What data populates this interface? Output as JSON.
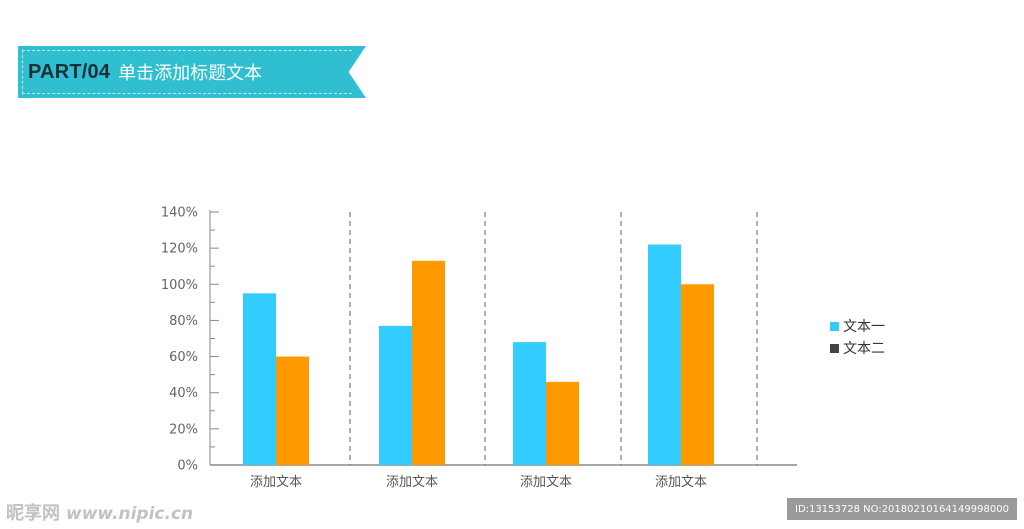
{
  "header": {
    "part": "PART/04",
    "title": "单击添加标题文本"
  },
  "colors": {
    "ribbon": "#2fbfd0",
    "series1": "#33ccff",
    "series2": "#ff9900",
    "legend_swatch2": "#444444"
  },
  "chart_data": {
    "type": "bar",
    "categories": [
      "添加文本",
      "添加文本",
      "添加文本",
      "添加文本"
    ],
    "series": [
      {
        "name": "文本一",
        "values": [
          95,
          77,
          68,
          122
        ]
      },
      {
        "name": "文本二",
        "values": [
          60,
          113,
          46,
          100
        ]
      }
    ],
    "ylim": [
      0,
      140
    ],
    "yticks": [
      0,
      20,
      40,
      60,
      80,
      100,
      120,
      140
    ],
    "ytick_labels": [
      "0%",
      "20%",
      "40%",
      "60%",
      "80%",
      "100%",
      "120%",
      "140%"
    ],
    "legend_position": "right",
    "title": "",
    "xlabel": "",
    "ylabel": ""
  },
  "legend": {
    "items": [
      {
        "label": "文本一"
      },
      {
        "label": "文本二"
      }
    ]
  },
  "watermark": {
    "brand": "昵享网",
    "url": "www.nipic.cn",
    "id_text": "ID:13153728 NO:20180210164149998000"
  }
}
